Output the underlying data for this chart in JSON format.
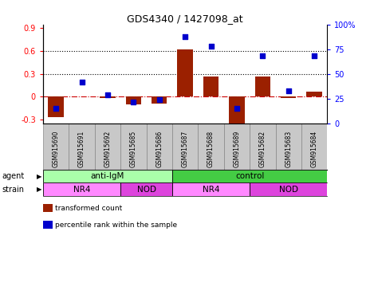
{
  "title": "GDS4340 / 1427098_at",
  "samples": [
    "GSM915690",
    "GSM915691",
    "GSM915692",
    "GSM915685",
    "GSM915686",
    "GSM915687",
    "GSM915688",
    "GSM915689",
    "GSM915682",
    "GSM915683",
    "GSM915684"
  ],
  "bar_values": [
    -0.27,
    0.0,
    -0.02,
    -0.1,
    -0.09,
    0.62,
    0.27,
    -0.35,
    0.27,
    -0.02,
    0.07
  ],
  "scatter_pct": [
    15,
    42,
    29,
    22,
    24,
    88,
    78,
    15,
    68,
    33,
    68
  ],
  "ylim": [
    -0.35,
    0.95
  ],
  "y2lim": [
    0,
    100
  ],
  "yticks": [
    -0.3,
    0.0,
    0.3,
    0.6,
    0.9
  ],
  "y2ticks": [
    0,
    25,
    50,
    75,
    100
  ],
  "ytick_labels": [
    "-0.3",
    "0",
    "0.3",
    "0.6",
    "0.9"
  ],
  "y2tick_labels": [
    "0",
    "25",
    "50",
    "75",
    "100%"
  ],
  "hlines": [
    0.3,
    0.6
  ],
  "bar_color": "#9B2000",
  "scatter_color": "#0000CC",
  "agent_groups": [
    {
      "label": "anti-IgM",
      "start": 0,
      "end": 5,
      "color": "#AAFFAA"
    },
    {
      "label": "control",
      "start": 5,
      "end": 11,
      "color": "#44CC44"
    }
  ],
  "strain_groups": [
    {
      "label": "NR4",
      "start": 0,
      "end": 3,
      "color": "#FF88FF"
    },
    {
      "label": "NOD",
      "start": 3,
      "end": 5,
      "color": "#DD44DD"
    },
    {
      "label": "NR4",
      "start": 5,
      "end": 8,
      "color": "#FF88FF"
    },
    {
      "label": "NOD",
      "start": 8,
      "end": 11,
      "color": "#DD44DD"
    }
  ],
  "legend_items": [
    {
      "label": "transformed count",
      "color": "#9B2000"
    },
    {
      "label": "percentile rank within the sample",
      "color": "#0000CC"
    }
  ],
  "label_bg_color": "#C8C8C8",
  "label_edge_color": "#888888"
}
